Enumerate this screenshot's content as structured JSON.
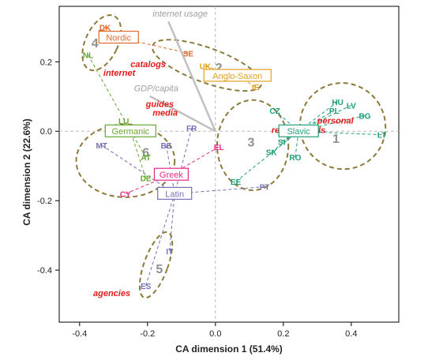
{
  "chart_data": {
    "type": "scatter",
    "title": "",
    "xlabel": "CA dimension 1 (51.4%)",
    "ylabel": "CA dimension 2 (22.6%)",
    "xlim": [
      -0.46,
      0.54
    ],
    "ylim": [
      -0.55,
      0.36
    ],
    "xticks": [
      -0.4,
      -0.2,
      0.0,
      0.2,
      0.4
    ],
    "yticks": [
      -0.4,
      -0.2,
      0.0,
      0.2
    ],
    "xtick_labels": [
      "-0.4",
      "-0.2",
      "0.0",
      "0.2",
      "0.4"
    ],
    "ytick_labels": [
      "-0.4",
      "-0.2",
      "0.0",
      "0.2"
    ],
    "grid": false,
    "reference_lines": [
      {
        "axis": "x",
        "value": 0
      },
      {
        "axis": "y",
        "value": 0
      }
    ],
    "colors": {
      "nordic": "#e06b2d",
      "anglo_saxon": "#e0a020",
      "slavic": "#1f9e77",
      "germanic": "#66a832",
      "greek": "#e7298a",
      "latin": "#7570b3",
      "keyword_red": "#e41a1c",
      "keyword_gray": "#a0a0a0",
      "cluster_ellipse": "#8b7a3a"
    },
    "groups": [
      {
        "key": "nordic",
        "label": "Nordic",
        "x": -0.285,
        "y": 0.27,
        "color": "#e06b2d"
      },
      {
        "key": "anglo_saxon",
        "label": "Anglo-Saxon",
        "x": 0.065,
        "y": 0.16,
        "color": "#e0a020"
      },
      {
        "key": "slavic",
        "label": "Slavic",
        "x": 0.245,
        "y": 0.0,
        "color": "#1f9e77"
      },
      {
        "key": "germanic",
        "label": "Germanic",
        "x": -0.25,
        "y": 0.0,
        "color": "#66a832"
      },
      {
        "key": "greek",
        "label": "Greek",
        "x": -0.13,
        "y": -0.125,
        "color": "#e7298a"
      },
      {
        "key": "latin",
        "label": "Latin",
        "x": -0.12,
        "y": -0.18,
        "color": "#7570b3"
      }
    ],
    "countries": [
      {
        "label": "DK",
        "group": "nordic",
        "x": -0.325,
        "y": 0.3
      },
      {
        "label": "FI",
        "group": "nordic",
        "x": -0.335,
        "y": 0.285
      },
      {
        "label": "SE",
        "group": "nordic",
        "x": -0.08,
        "y": 0.225
      },
      {
        "label": "NL",
        "group": "germanic",
        "x": -0.375,
        "y": 0.22
      },
      {
        "label": "UK",
        "group": "anglo_saxon",
        "x": -0.03,
        "y": 0.188
      },
      {
        "label": "IE",
        "group": "anglo_saxon",
        "x": 0.118,
        "y": 0.128
      },
      {
        "label": "CZ",
        "group": "slavic",
        "x": 0.175,
        "y": 0.06
      },
      {
        "label": "HU",
        "group": "slavic",
        "x": 0.36,
        "y": 0.085
      },
      {
        "label": "PL",
        "group": "slavic",
        "x": 0.35,
        "y": 0.06
      },
      {
        "label": "LV",
        "group": "slavic",
        "x": 0.4,
        "y": 0.075
      },
      {
        "label": "BG",
        "group": "slavic",
        "x": 0.44,
        "y": 0.045
      },
      {
        "label": "LT",
        "group": "slavic",
        "x": 0.49,
        "y": -0.01
      },
      {
        "label": "SI",
        "group": "slavic",
        "x": 0.195,
        "y": -0.03
      },
      {
        "label": "SK",
        "group": "slavic",
        "x": 0.165,
        "y": -0.06
      },
      {
        "label": "RO",
        "group": "slavic",
        "x": 0.235,
        "y": -0.075
      },
      {
        "label": "EE",
        "group": "slavic",
        "x": 0.06,
        "y": -0.145
      },
      {
        "label": "LU",
        "group": "germanic",
        "x": -0.27,
        "y": 0.03
      },
      {
        "label": "AT",
        "group": "germanic",
        "x": -0.205,
        "y": -0.075
      },
      {
        "label": "DE",
        "group": "germanic",
        "x": -0.205,
        "y": -0.135
      },
      {
        "label": "BE",
        "group": "latin",
        "x": -0.145,
        "y": -0.04
      },
      {
        "label": "FR",
        "group": "latin",
        "x": -0.07,
        "y": 0.01
      },
      {
        "label": "MT",
        "group": "latin",
        "x": -0.335,
        "y": -0.04
      },
      {
        "label": "PT",
        "group": "latin",
        "x": 0.145,
        "y": -0.16
      },
      {
        "label": "IT",
        "group": "latin",
        "x": -0.135,
        "y": -0.345
      },
      {
        "label": "ES",
        "group": "latin",
        "x": -0.205,
        "y": -0.445
      },
      {
        "label": "EL",
        "group": "greek",
        "x": 0.01,
        "y": -0.045
      },
      {
        "label": "CY",
        "group": "greek",
        "x": -0.265,
        "y": -0.18
      }
    ],
    "keywords": [
      {
        "label": "internet usage",
        "x": -0.185,
        "y": 0.33,
        "color": "#a0a0a0",
        "arrow": true
      },
      {
        "label": "GDP/capita",
        "x": -0.24,
        "y": 0.115,
        "color": "#a0a0a0",
        "arrow": true
      },
      {
        "label": "catalogs",
        "x": -0.25,
        "y": 0.185,
        "color": "#e41a1c",
        "arrow": false
      },
      {
        "label": "internet",
        "x": -0.33,
        "y": 0.16,
        "color": "#e41a1c",
        "arrow": false
      },
      {
        "label": "guides",
        "x": -0.205,
        "y": 0.07,
        "color": "#e41a1c",
        "arrow": false
      },
      {
        "label": "media",
        "x": -0.185,
        "y": 0.045,
        "color": "#e41a1c",
        "arrow": false
      },
      {
        "label": "personal",
        "x": 0.3,
        "y": 0.022,
        "color": "#e41a1c",
        "arrow": false
      },
      {
        "label": "recommends",
        "x": 0.165,
        "y": -0.005,
        "color": "#e41a1c",
        "arrow": false
      },
      {
        "label": "agencies",
        "x": -0.36,
        "y": -0.475,
        "color": "#e41a1c",
        "arrow": false
      }
    ],
    "clusters": [
      {
        "label": "1",
        "cx": 0.375,
        "cy": 0.015,
        "rx": 0.125,
        "ry": 0.125,
        "rotation": -35,
        "lx": 0.355,
        "ly": -0.02
      },
      {
        "label": "2",
        "cx": -0.025,
        "cy": 0.19,
        "rx": 0.17,
        "ry": 0.05,
        "rotation": 20,
        "lx": 0.01,
        "ly": 0.185
      },
      {
        "label": "3",
        "cx": 0.11,
        "cy": -0.04,
        "rx": 0.105,
        "ry": 0.13,
        "rotation": 0,
        "lx": 0.105,
        "ly": -0.03
      },
      {
        "label": "4",
        "cx": -0.335,
        "cy": 0.255,
        "rx": 0.048,
        "ry": 0.085,
        "rotation": 25,
        "lx": -0.355,
        "ly": 0.255
      },
      {
        "label": "5",
        "cx": -0.175,
        "cy": -0.385,
        "rx": 0.035,
        "ry": 0.1,
        "rotation": 20,
        "lx": -0.165,
        "ly": -0.395
      },
      {
        "label": "6",
        "cx": -0.265,
        "cy": -0.085,
        "rx": 0.145,
        "ry": 0.105,
        "rotation": 0,
        "lx": -0.205,
        "ly": -0.06
      }
    ]
  }
}
